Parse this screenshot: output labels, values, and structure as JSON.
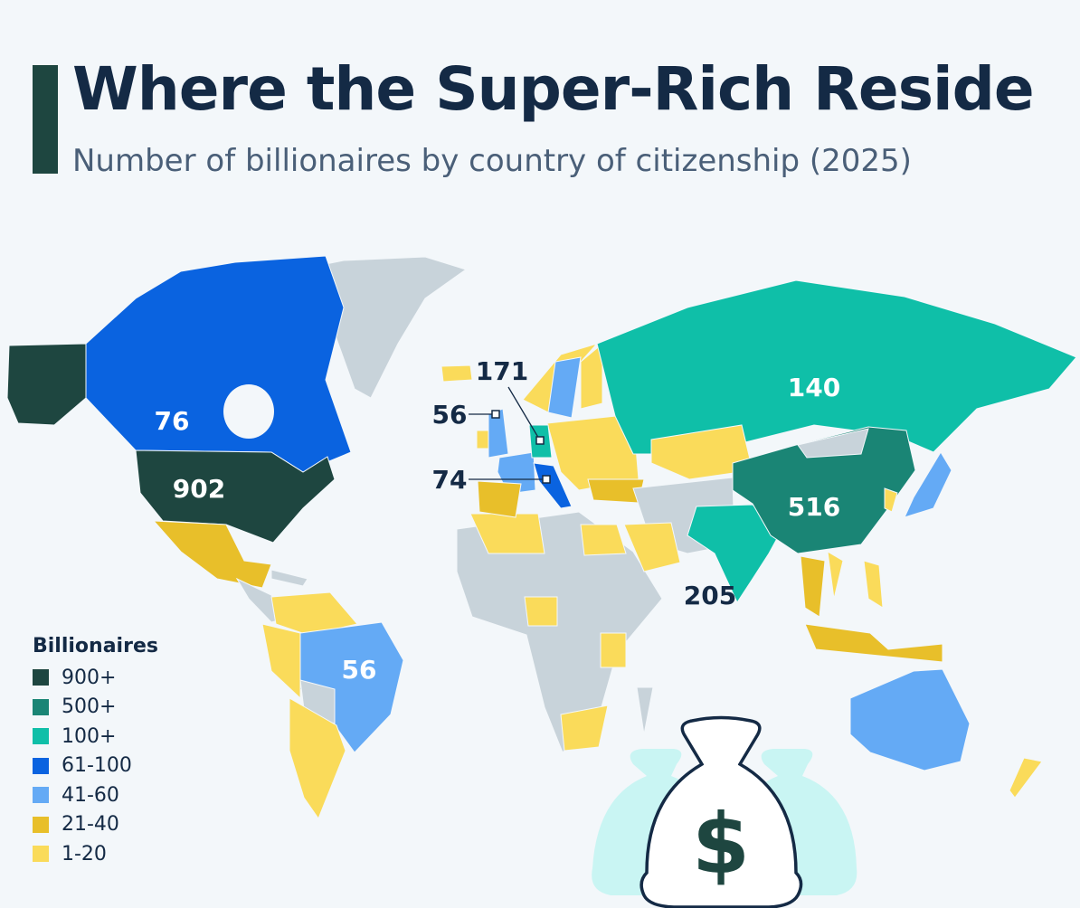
{
  "header": {
    "title": "Where the Super-Rich Reside",
    "subtitle": "Number of billionaires by country of citizenship (2025)"
  },
  "legend": {
    "title": "Billionaires",
    "items": [
      {
        "label": "900+",
        "color": "#1e4640"
      },
      {
        "label": "500+",
        "color": "#1a8575"
      },
      {
        "label": "100+",
        "color": "#0fbfa8"
      },
      {
        "label": "61-100",
        "color": "#0a63e0"
      },
      {
        "label": "41-60",
        "color": "#64aaf5"
      },
      {
        "label": "21-40",
        "color": "#e8bf2a"
      },
      {
        "label": "1-20",
        "color": "#fadb5a"
      }
    ],
    "no_data_color": "#c8d3da"
  },
  "map_labels": [
    {
      "value": "902"
    },
    {
      "value": "76"
    },
    {
      "value": "56"
    },
    {
      "value": "516"
    },
    {
      "value": "140"
    },
    {
      "value": "205"
    },
    {
      "value": "171"
    },
    {
      "value": "56"
    },
    {
      "value": "74"
    }
  ],
  "illustration": {
    "icon": "money-bag-dollar-icon",
    "symbol": "$"
  }
}
